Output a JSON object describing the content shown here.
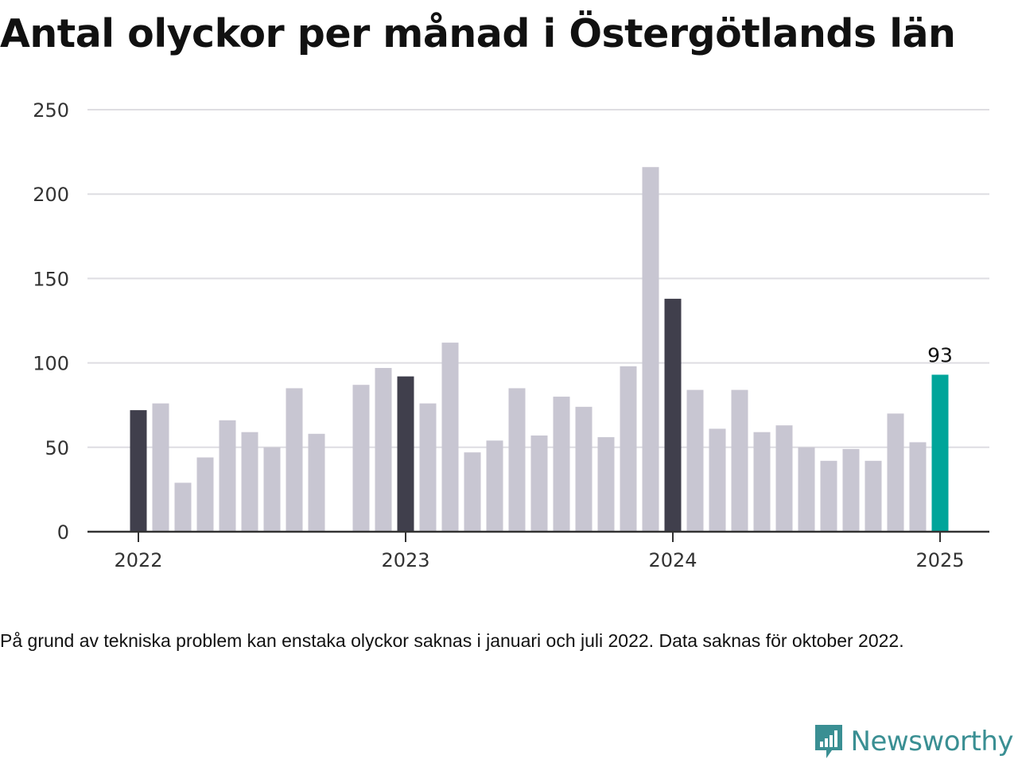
{
  "title": "Antal olyckor per månad i Östergötlands län",
  "note": "På grund av tekniska problem kan enstaka olyckor saknas i januari och juli 2022. Data saknas för oktober 2022.",
  "brand": {
    "name": "Newsworthy",
    "logo_icon": "bar-chart-speech-bubble-icon"
  },
  "colors": {
    "bar": "#c8c6d2",
    "january": "#403f4c",
    "latest": "#00a59a",
    "grid": "#dedde2",
    "axis": "#333333"
  },
  "chart_data": {
    "type": "bar",
    "title": "Antal olyckor per månad i Östergötlands län",
    "xlabel": "",
    "ylabel": "",
    "ylim": [
      0,
      250
    ],
    "yticks": [
      0,
      50,
      100,
      150,
      200,
      250
    ],
    "xticks": [
      {
        "label": "2022",
        "x": "2022-01"
      },
      {
        "label": "2023",
        "x": "2023-01"
      },
      {
        "label": "2024",
        "x": "2024-01"
      },
      {
        "label": "2025",
        "x": "2025-01"
      }
    ],
    "grid": true,
    "legend": "none",
    "highlight_label": {
      "x": "2025-01",
      "text": "93"
    },
    "series": [
      {
        "x": [
          "2022-01",
          "2022-02",
          "2022-03",
          "2022-04",
          "2022-05",
          "2022-06",
          "2022-07",
          "2022-08",
          "2022-09",
          "2022-10",
          "2022-11",
          "2022-12",
          "2023-01",
          "2023-02",
          "2023-03",
          "2023-04",
          "2023-05",
          "2023-06",
          "2023-07",
          "2023-08",
          "2023-09",
          "2023-10",
          "2023-11",
          "2023-12",
          "2024-01",
          "2024-02",
          "2024-03",
          "2024-04",
          "2024-05",
          "2024-06",
          "2024-07",
          "2024-08",
          "2024-09",
          "2024-10",
          "2024-11",
          "2024-12",
          "2025-01"
        ],
        "values": [
          72,
          76,
          29,
          44,
          66,
          59,
          50,
          85,
          58,
          null,
          87,
          97,
          92,
          76,
          112,
          47,
          54,
          85,
          57,
          80,
          74,
          56,
          98,
          216,
          138,
          84,
          61,
          84,
          59,
          63,
          50,
          42,
          49,
          42,
          70,
          53,
          93
        ]
      }
    ]
  }
}
